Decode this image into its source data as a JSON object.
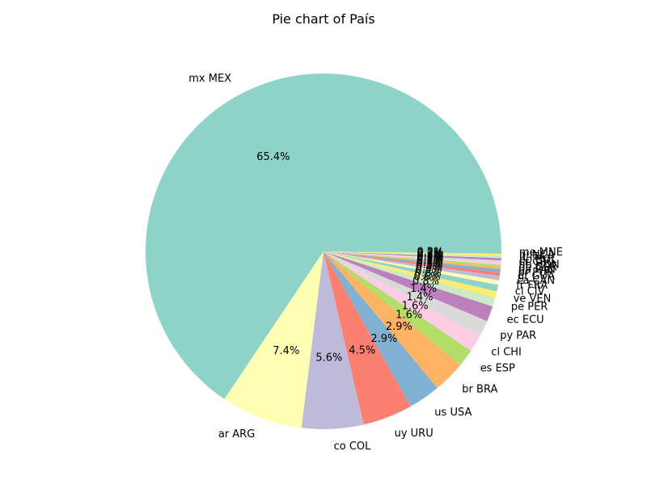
{
  "chart_data": {
    "type": "pie",
    "title": "Pie chart of País",
    "start_angle_deg": 0,
    "direction": "counterclockwise",
    "slices": [
      {
        "label": "mx MEX",
        "value": 65.4,
        "pct_label": "65.4%",
        "color": "#8dd3c7"
      },
      {
        "label": "ar ARG",
        "value": 7.4,
        "pct_label": "7.4%",
        "color": "#ffffb3"
      },
      {
        "label": "co COL",
        "value": 5.6,
        "pct_label": "5.6%",
        "color": "#bebada"
      },
      {
        "label": "uy URU",
        "value": 4.5,
        "pct_label": "4.5%",
        "color": "#fb8072"
      },
      {
        "label": "us USA",
        "value": 2.9,
        "pct_label": "2.9%",
        "color": "#80b1d3"
      },
      {
        "label": "br BRA",
        "value": 2.9,
        "pct_label": "2.9%",
        "color": "#fdb462"
      },
      {
        "label": "es ESP",
        "value": 1.6,
        "pct_label": "1.6%",
        "color": "#b3de69"
      },
      {
        "label": "cl CHI",
        "value": 1.6,
        "pct_label": "1.6%",
        "color": "#fccde5"
      },
      {
        "label": "py PAR",
        "value": 1.4,
        "pct_label": "1.4%",
        "color": "#d9d9d9"
      },
      {
        "label": "ec ECU",
        "value": 1.4,
        "pct_label": "1.4%",
        "color": "#bc80bd"
      },
      {
        "label": "pe PER",
        "value": 0.8,
        "pct_label": "0.8%",
        "color": "#ccebc5"
      },
      {
        "label": "ve VEN",
        "value": 0.6,
        "pct_label": "0.6%",
        "color": "#ffed6f"
      },
      {
        "label": "cl CIV",
        "value": 0.6,
        "pct_label": "0.6%",
        "color": "#8dd3c7"
      },
      {
        "label": "fr FRA",
        "value": 0.4,
        "pct_label": "0.4%",
        "color": "#ffffb3"
      },
      {
        "label": "ca CAN",
        "value": 0.4,
        "pct_label": "0.4%",
        "color": "#bebada"
      },
      {
        "label": "gt GUA",
        "value": 0.3,
        "pct_label": "0.3%",
        "color": "#fb8072"
      },
      {
        "label": "pr PUR",
        "value": 0.3,
        "pct_label": "0.3%",
        "color": "#80b1d3"
      },
      {
        "label": "pa PAN",
        "value": 0.2,
        "pct_label": "0.2%",
        "color": "#fdb462"
      },
      {
        "label": "de GER",
        "value": 0.2,
        "pct_label": "0.2%",
        "color": "#b3de69"
      },
      {
        "label": "hn HON",
        "value": 0.2,
        "pct_label": "0.2%",
        "color": "#fccde5"
      },
      {
        "label": "cr CRC",
        "value": 0.2,
        "pct_label": "0.2%",
        "color": "#d9d9d9"
      },
      {
        "label": "bo BOL",
        "value": 0.2,
        "pct_label": "0.2%",
        "color": "#bc80bd"
      },
      {
        "label": "it ITA",
        "value": 0.2,
        "pct_label": "0.2%",
        "color": "#ccebc5"
      },
      {
        "label": "ni NCA",
        "value": 0.2,
        "pct_label": "0.2%",
        "color": "#ffed6f"
      },
      {
        "label": "me MNE",
        "value": 0.2,
        "pct_label": "0.2%",
        "color": "#8dd3c7"
      }
    ]
  }
}
